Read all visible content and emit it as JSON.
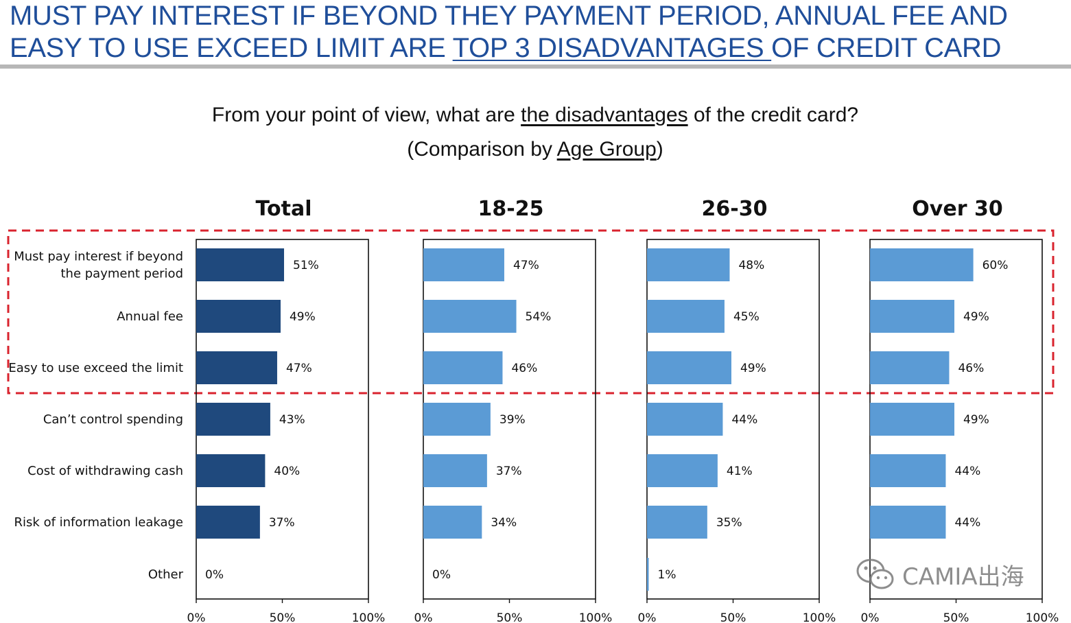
{
  "headline": {
    "line1": "MUST PAY INTEREST IF BEYOND THEY PAYMENT PERIOD, ANNUAL FEE AND",
    "line2_pre": "EASY TO USE EXCEED LIMIT ARE ",
    "line2_underlined": "TOP 3 DISADVANTAGES ",
    "line2_post": "OF CREDIT CARD"
  },
  "question": {
    "pre": "From your point of view, what are ",
    "underlined1": "the disadvantages",
    "mid": " of the credit card? (Comparison by ",
    "underlined2": "Age Group",
    "post": ")"
  },
  "watermark": {
    "text": "CAMIA出海",
    "icon": "wechat-icon"
  },
  "colors": {
    "headline": "#1f4e9a",
    "total_bar": "#1f497d",
    "group_bar": "#5b9bd5",
    "highlight_box": "#d9232e"
  },
  "chart_data": {
    "type": "bar",
    "orientation": "horizontal",
    "categories": [
      "Must pay interest if beyond the payment period",
      "Annual fee",
      "Easy to use exceed the limit",
      "Can’t control spending",
      "Cost of withdrawing cash",
      "Risk of information leakage",
      "Other"
    ],
    "category_lines": [
      [
        "Must pay interest if beyond",
        "the payment period"
      ],
      [
        "Annual fee"
      ],
      [
        "Easy to use exceed the limit"
      ],
      [
        "Can’t control spending"
      ],
      [
        "Cost of withdrawing cash"
      ],
      [
        "Risk of information leakage"
      ],
      [
        "Other"
      ]
    ],
    "series": [
      {
        "name": "Total",
        "values": [
          51,
          49,
          47,
          43,
          40,
          37,
          0
        ],
        "labels": [
          "51%",
          "49%",
          "47%",
          "43%",
          "40%",
          "37%",
          "0%"
        ]
      },
      {
        "name": "18-25",
        "values": [
          47,
          54,
          46,
          39,
          37,
          34,
          0
        ],
        "labels": [
          "47%",
          "54%",
          "46%",
          "39%",
          "37%",
          "34%",
          "0%"
        ]
      },
      {
        "name": "26-30",
        "values": [
          48,
          45,
          49,
          44,
          41,
          35,
          1
        ],
        "labels": [
          "48%",
          "45%",
          "49%",
          "44%",
          "41%",
          "35%",
          "1%"
        ]
      },
      {
        "name": "Over 30",
        "values": [
          60,
          49,
          46,
          49,
          44,
          44,
          0
        ],
        "labels": [
          "60%",
          "49%",
          "46%",
          "49%",
          "44%",
          "44%",
          ""
        ]
      }
    ],
    "xlim": [
      0,
      100
    ],
    "xticks": [
      "0%",
      "50%",
      "100%"
    ],
    "highlighted_categories": 3,
    "unit": "%"
  }
}
